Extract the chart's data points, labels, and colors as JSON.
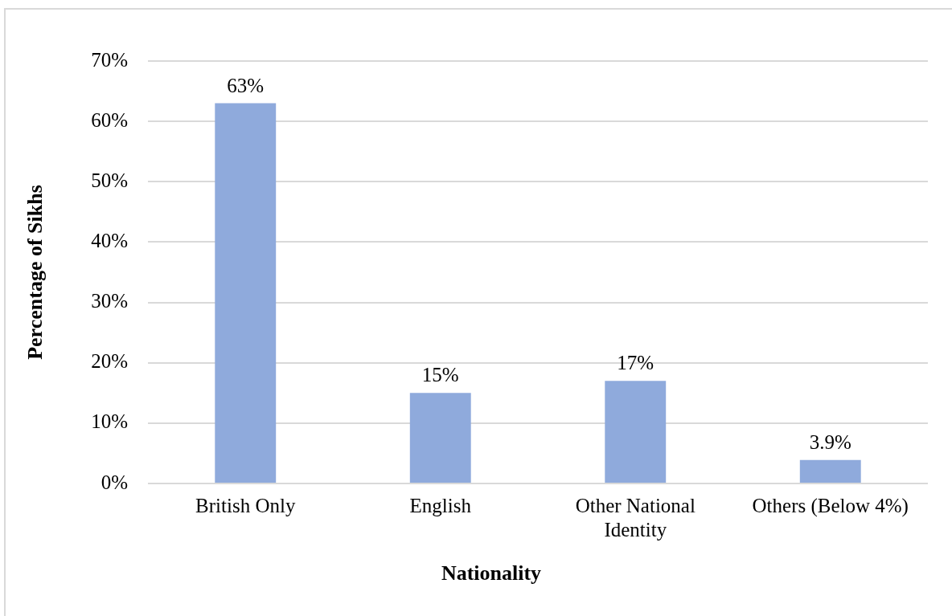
{
  "chart_data": {
    "type": "bar",
    "xlabel": "Nationality",
    "ylabel": "Percentage of Sikhs",
    "categories": [
      "British Only",
      "English",
      "Other National Identity",
      "Others (Below 4%)"
    ],
    "values": [
      63,
      15,
      17,
      3.9
    ],
    "value_labels": [
      "63%",
      "15%",
      "17%",
      "3.9%"
    ],
    "color": "#8faadc",
    "ylim": [
      0,
      70
    ],
    "yticks": [
      {
        "value": 0,
        "label": "0%"
      },
      {
        "value": 10,
        "label": "10%"
      },
      {
        "value": 20,
        "label": "20%"
      },
      {
        "value": 30,
        "label": "30%"
      },
      {
        "value": 40,
        "label": "40%"
      },
      {
        "value": 50,
        "label": "50%"
      },
      {
        "value": 60,
        "label": "60%"
      },
      {
        "value": 70,
        "label": "70%"
      }
    ],
    "grid": "y"
  }
}
